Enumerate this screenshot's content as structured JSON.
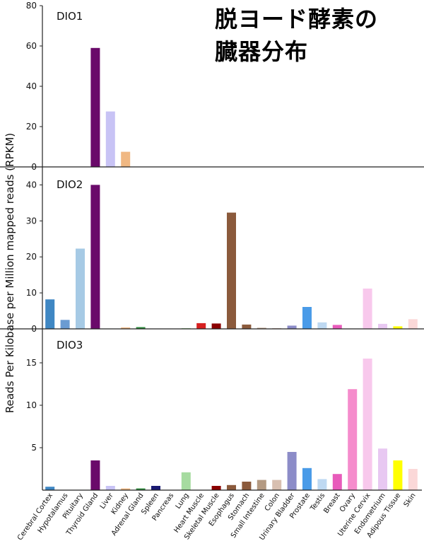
{
  "title_lines": [
    "脱ヨード酵素の",
    "臓器分布"
  ],
  "chart_data": {
    "type": "bar",
    "ylabel": "Reads Per Kilobase per Million mapped reads (RPKM)",
    "categories": [
      "Cerebral Cortex",
      "Hypotalamus",
      "Pituitary",
      "Thyroid Gland",
      "Liver",
      "Kidney",
      "Adrenal Gland",
      "Spleen",
      "Pancreas",
      "Lung",
      "Heart Muscle",
      "Skeletal Muscle",
      "Esophagus",
      "Stomach",
      "Small Intestine",
      "Colon",
      "Urinary Bladder",
      "Prostate",
      "Testis",
      "Breast",
      "Ovary",
      "Uterine Cervix",
      "Endometrium",
      "Adipous Tissue",
      "Skin"
    ],
    "colors": [
      "#3f87c3",
      "#6b9bd2",
      "#a6cae5",
      "#6a0a6a",
      "#c8c3f5",
      "#f0b883",
      "#2e8b3c",
      "#1a1a72",
      "#ece6c4",
      "#a6dba0",
      "#d62020",
      "#8b0000",
      "#8b5a3c",
      "#8b5a3c",
      "#b49a82",
      "#d8bfb0",
      "#8c8cc8",
      "#4a9be8",
      "#bed9f2",
      "#e85bbb",
      "#f58ccc",
      "#f8c8ec",
      "#e8c8f2",
      "#ffff00",
      "#fbd8d8"
    ],
    "panels": [
      {
        "label": "DIO1",
        "ylim": [
          0,
          80
        ],
        "yticks": [
          0,
          20,
          40,
          60,
          80
        ],
        "values": [
          0,
          0,
          0,
          59,
          27.5,
          7.5,
          0,
          0,
          0,
          0,
          0,
          0,
          0,
          0,
          0,
          0,
          0,
          0,
          0,
          0,
          0,
          0,
          0,
          0,
          0
        ]
      },
      {
        "label": "DIO2",
        "ylim": [
          0,
          45
        ],
        "yticks": [
          0,
          10,
          20,
          30,
          40
        ],
        "values": [
          8.2,
          2.5,
          22.3,
          40,
          0,
          0.4,
          0.5,
          0,
          0,
          0.2,
          1.6,
          1.5,
          32.3,
          1.2,
          0.3,
          0.2,
          0.9,
          6.1,
          1.8,
          1.1,
          0,
          11.2,
          1.4,
          0.7,
          2.7
        ]
      },
      {
        "label": "DIO3",
        "ylim": [
          0,
          19
        ],
        "yticks": [
          5,
          10,
          15
        ],
        "values": [
          0.4,
          0,
          0,
          3.5,
          0.5,
          0.2,
          0.2,
          0.5,
          0,
          2.1,
          0,
          0.5,
          0.6,
          1,
          1.2,
          1.2,
          4.5,
          2.6,
          1.3,
          1.9,
          11.9,
          15.5,
          4.9,
          3.5,
          2.5
        ]
      }
    ]
  }
}
